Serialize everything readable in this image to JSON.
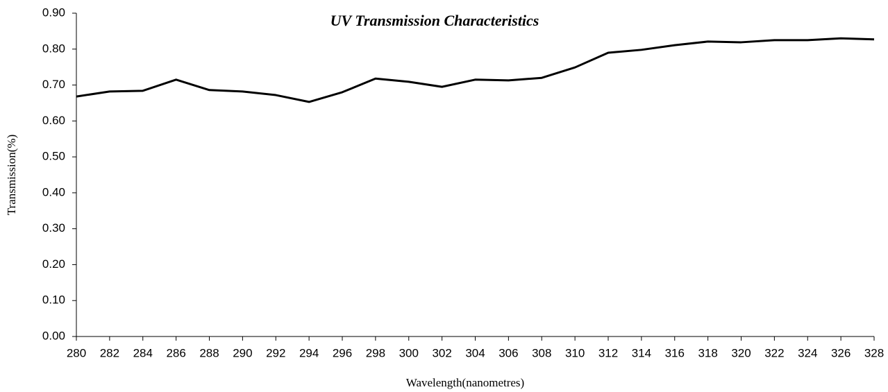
{
  "chart_data": {
    "type": "line",
    "title": "UV Transmission Characteristics",
    "x_label": "Wavelength(nanometres)",
    "y_label": "Transmission(%)",
    "x": [
      280,
      282,
      284,
      286,
      288,
      290,
      292,
      294,
      296,
      298,
      300,
      302,
      304,
      306,
      308,
      310,
      312,
      314,
      316,
      318,
      320,
      322,
      324,
      326,
      328
    ],
    "values": [
      0.668,
      0.682,
      0.684,
      0.715,
      0.686,
      0.682,
      0.672,
      0.653,
      0.68,
      0.718,
      0.709,
      0.695,
      0.715,
      0.713,
      0.72,
      0.749,
      0.79,
      0.798,
      0.811,
      0.821,
      0.819,
      0.825,
      0.825,
      0.83,
      0.827
    ],
    "color": "#000000",
    "xlim": [
      280,
      328
    ],
    "xticks": [
      280,
      282,
      284,
      286,
      288,
      290,
      292,
      294,
      296,
      298,
      300,
      302,
      304,
      306,
      308,
      310,
      312,
      314,
      316,
      318,
      320,
      322,
      324,
      326,
      328
    ],
    "ylim": [
      0,
      0.9
    ],
    "yticks": [
      {
        "value": 0,
        "label": "0.00"
      },
      {
        "value": 0.1,
        "label": "0.10"
      },
      {
        "value": 0.2,
        "label": "0.20"
      },
      {
        "value": 0.3,
        "label": "0.30"
      },
      {
        "value": 0.4,
        "label": "0.40"
      },
      {
        "value": 0.5,
        "label": "0.50"
      },
      {
        "value": 0.6,
        "label": "0.60"
      },
      {
        "value": 0.7,
        "label": "0.70"
      },
      {
        "value": 0.8,
        "label": "0.80"
      },
      {
        "value": 0.9,
        "label": "0.90"
      }
    ],
    "grid": false
  }
}
